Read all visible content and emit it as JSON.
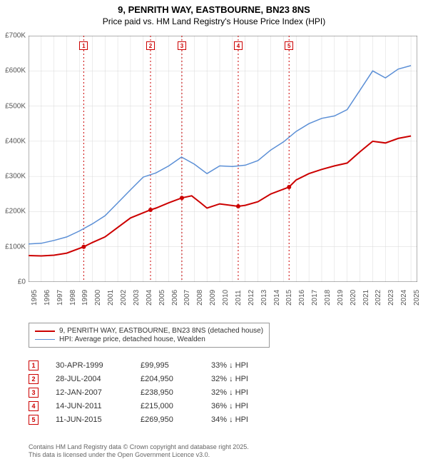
{
  "title": {
    "line1": "9, PENRITH WAY, EASTBOURNE, BN23 8NS",
    "line2": "Price paid vs. HM Land Registry's House Price Index (HPI)"
  },
  "chart": {
    "type": "line",
    "background_color": "#ffffff",
    "grid_color": "#d8d8d8",
    "axis_color": "#666666",
    "x_range": [
      1995,
      2025.5
    ],
    "y_range": [
      0,
      700000
    ],
    "y_ticks": [
      0,
      100000,
      200000,
      300000,
      400000,
      500000,
      600000,
      700000
    ],
    "y_tick_labels": [
      "£0",
      "£100K",
      "£200K",
      "£300K",
      "£400K",
      "£500K",
      "£600K",
      "£700K"
    ],
    "x_ticks": [
      1995,
      1996,
      1997,
      1998,
      1999,
      2000,
      2001,
      2002,
      2003,
      2004,
      2005,
      2006,
      2007,
      2008,
      2009,
      2010,
      2011,
      2012,
      2013,
      2014,
      2015,
      2016,
      2017,
      2018,
      2019,
      2020,
      2021,
      2022,
      2023,
      2024,
      2025
    ],
    "series": [
      {
        "name": "9, PENRITH WAY, EASTBOURNE, BN23 8NS (detached house)",
        "color": "#cc0000",
        "line_width": 2,
        "data": [
          [
            1995,
            75000
          ],
          [
            1996,
            74000
          ],
          [
            1997,
            76000
          ],
          [
            1998,
            82000
          ],
          [
            1999.33,
            99995
          ],
          [
            2000,
            112000
          ],
          [
            2001,
            128000
          ],
          [
            2002,
            155000
          ],
          [
            2003,
            182000
          ],
          [
            2004.57,
            204950
          ],
          [
            2005,
            210000
          ],
          [
            2006,
            225000
          ],
          [
            2007.03,
            238950
          ],
          [
            2007.8,
            245000
          ],
          [
            2008.5,
            225000
          ],
          [
            2009,
            210000
          ],
          [
            2010,
            222000
          ],
          [
            2011.45,
            215000
          ],
          [
            2012,
            218000
          ],
          [
            2013,
            228000
          ],
          [
            2014,
            250000
          ],
          [
            2015.44,
            269950
          ],
          [
            2016,
            290000
          ],
          [
            2017,
            308000
          ],
          [
            2018,
            320000
          ],
          [
            2019,
            330000
          ],
          [
            2020,
            338000
          ],
          [
            2021,
            370000
          ],
          [
            2022,
            400000
          ],
          [
            2023,
            395000
          ],
          [
            2024,
            408000
          ],
          [
            2025,
            415000
          ]
        ]
      },
      {
        "name": "HPI: Average price, detached house, Wealden",
        "color": "#5b8fd6",
        "line_width": 1.5,
        "data": [
          [
            1995,
            108000
          ],
          [
            1996,
            110000
          ],
          [
            1997,
            118000
          ],
          [
            1998,
            128000
          ],
          [
            1999,
            145000
          ],
          [
            2000,
            165000
          ],
          [
            2001,
            188000
          ],
          [
            2002,
            225000
          ],
          [
            2003,
            262000
          ],
          [
            2004,
            298000
          ],
          [
            2005,
            310000
          ],
          [
            2006,
            330000
          ],
          [
            2007,
            355000
          ],
          [
            2008,
            335000
          ],
          [
            2009,
            308000
          ],
          [
            2010,
            330000
          ],
          [
            2011,
            328000
          ],
          [
            2012,
            332000
          ],
          [
            2013,
            345000
          ],
          [
            2014,
            375000
          ],
          [
            2015,
            398000
          ],
          [
            2016,
            428000
          ],
          [
            2017,
            450000
          ],
          [
            2018,
            465000
          ],
          [
            2019,
            472000
          ],
          [
            2020,
            490000
          ],
          [
            2021,
            545000
          ],
          [
            2022,
            600000
          ],
          [
            2023,
            580000
          ],
          [
            2024,
            605000
          ],
          [
            2025,
            615000
          ]
        ]
      }
    ],
    "markers": [
      {
        "n": "1",
        "x": 1999.33,
        "date": "30-APR-1999",
        "price": "£99,995",
        "diff": "33% ↓ HPI",
        "color": "#cc0000"
      },
      {
        "n": "2",
        "x": 2004.57,
        "date": "28-JUL-2004",
        "price": "£204,950",
        "diff": "32% ↓ HPI",
        "color": "#cc0000"
      },
      {
        "n": "3",
        "x": 2007.03,
        "date": "12-JAN-2007",
        "price": "£238,950",
        "diff": "32% ↓ HPI",
        "color": "#cc0000"
      },
      {
        "n": "4",
        "x": 2011.45,
        "date": "14-JUN-2011",
        "price": "£215,000",
        "diff": "36% ↓ HPI",
        "color": "#cc0000"
      },
      {
        "n": "5",
        "x": 2015.44,
        "date": "11-JUN-2015",
        "price": "£269,950",
        "diff": "34% ↓ HPI",
        "color": "#cc0000"
      }
    ],
    "marker_line_color": "#cc0000",
    "marker_line_dash": "2,3"
  },
  "footnote": {
    "line1": "Contains HM Land Registry data © Crown copyright and database right 2025.",
    "line2": "This data is licensed under the Open Government Licence v3.0."
  }
}
